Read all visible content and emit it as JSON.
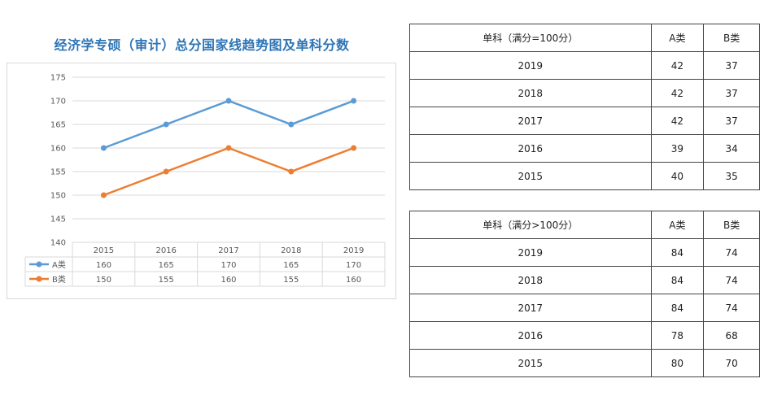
{
  "chart_data": {
    "type": "line",
    "title": "经济学专硕（审计）总分国家线趋势图及单科分数",
    "categories": [
      "2015",
      "2016",
      "2017",
      "2018",
      "2019"
    ],
    "series": [
      {
        "name": "A类",
        "values": [
          160,
          165,
          170,
          165,
          170
        ],
        "color": "#5b9bd5"
      },
      {
        "name": "B类",
        "values": [
          150,
          155,
          160,
          155,
          160
        ],
        "color": "#ed7d31"
      }
    ],
    "ylim": [
      140,
      175
    ],
    "yticks": [
      140,
      145,
      150,
      155,
      160,
      165,
      170,
      175
    ],
    "grid": true,
    "legend": "data-table"
  },
  "tables": [
    {
      "headers": [
        "单科（满分=100分）",
        "A类",
        "B类"
      ],
      "rows": [
        [
          "2019",
          "42",
          "37"
        ],
        [
          "2018",
          "42",
          "37"
        ],
        [
          "2017",
          "42",
          "37"
        ],
        [
          "2016",
          "39",
          "34"
        ],
        [
          "2015",
          "40",
          "35"
        ]
      ]
    },
    {
      "headers": [
        "单科（满分>100分）",
        "A类",
        "B类"
      ],
      "rows": [
        [
          "2019",
          "84",
          "74"
        ],
        [
          "2018",
          "84",
          "74"
        ],
        [
          "2017",
          "84",
          "74"
        ],
        [
          "2016",
          "78",
          "68"
        ],
        [
          "2015",
          "80",
          "70"
        ]
      ]
    }
  ]
}
